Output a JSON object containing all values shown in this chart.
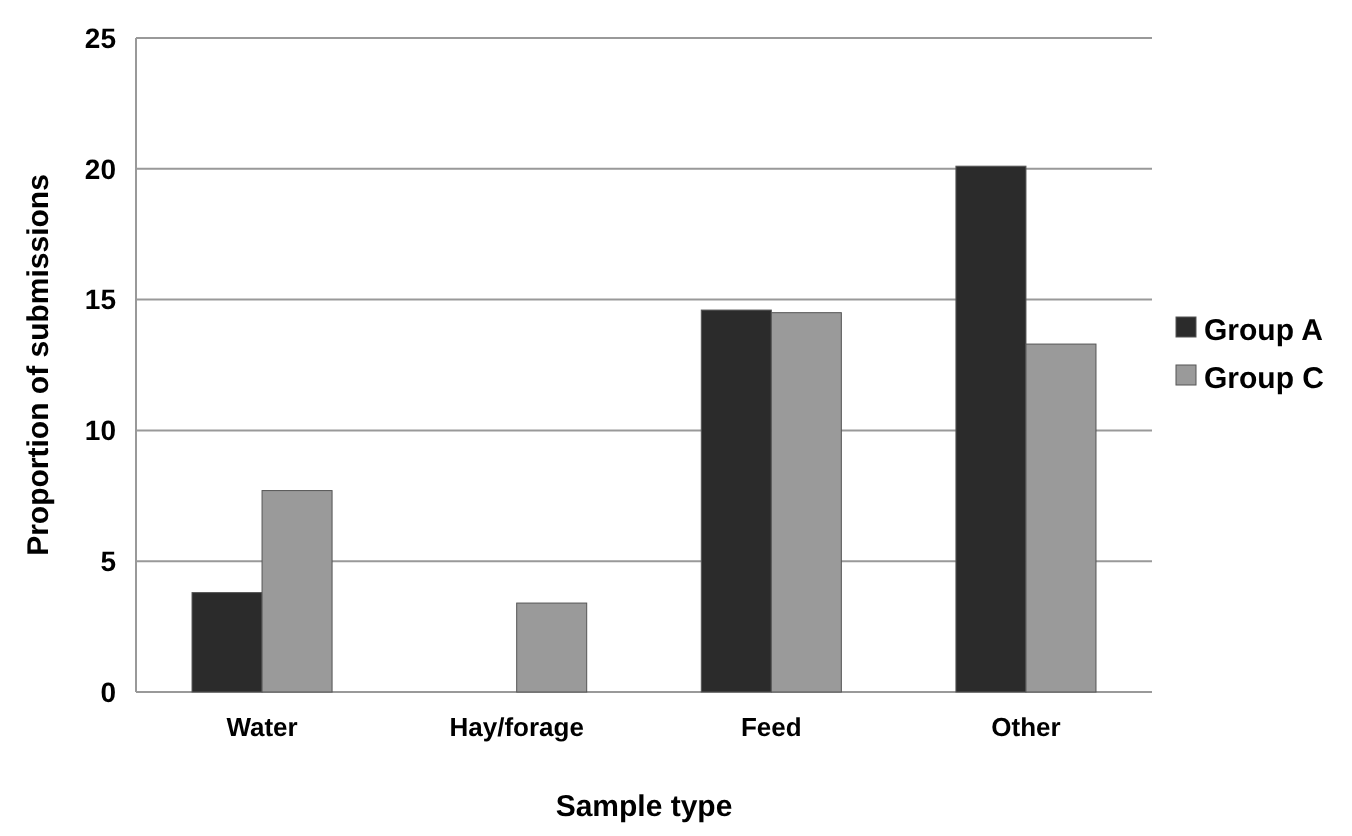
{
  "chart_data": {
    "type": "bar",
    "xlabel": "Sample type",
    "ylabel": "Proportion of submissions",
    "categories": [
      "Water",
      "Hay/forage",
      "Feed",
      "Other"
    ],
    "series": [
      {
        "name": "Group A",
        "color": "#2b2b2b",
        "values": [
          3.8,
          0,
          14.6,
          20.1
        ]
      },
      {
        "name": "Group C",
        "color": "#9a9a9a",
        "values": [
          7.7,
          3.4,
          14.5,
          13.3
        ]
      }
    ],
    "ylim": [
      0,
      25
    ],
    "yticks": [
      0,
      5,
      10,
      15,
      20,
      25
    ],
    "grid": "y",
    "legend": "right"
  }
}
